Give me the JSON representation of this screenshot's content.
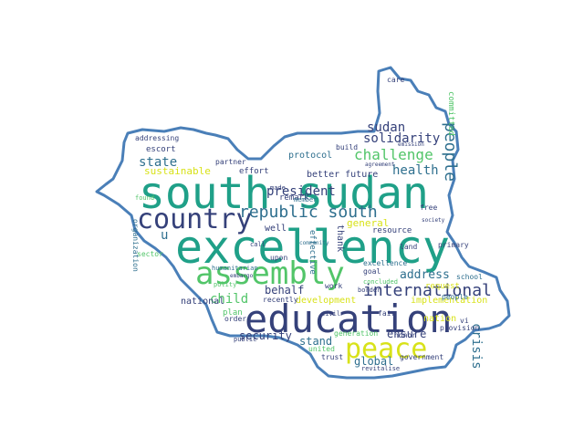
{
  "wordcloud": {
    "words": [
      {
        "text": "south sudan",
        "color": "#1fa088"
      },
      {
        "text": "excellency",
        "color": "#1fa088"
      },
      {
        "text": "education",
        "color": "#35417a"
      },
      {
        "text": "assembly",
        "color": "#52c569"
      },
      {
        "text": "country",
        "color": "#35417a"
      },
      {
        "text": "peace",
        "color": "#d8e219"
      },
      {
        "text": "republic south",
        "color": "#2e6f8e"
      },
      {
        "text": "international",
        "color": "#35417a"
      },
      {
        "text": "people",
        "color": "#2e6f8e"
      },
      {
        "text": "challenge",
        "color": "#52c569"
      },
      {
        "text": "solidarity",
        "color": "#35417a"
      },
      {
        "text": "sudan",
        "color": "#35417a"
      },
      {
        "text": "health",
        "color": "#2e6f8e"
      },
      {
        "text": "president",
        "color": "#35417a"
      },
      {
        "text": "state",
        "color": "#2e6f8e"
      },
      {
        "text": "sustainable",
        "color": "#d8e219"
      },
      {
        "text": "address",
        "color": "#2e6f8e"
      },
      {
        "text": "child",
        "color": "#52c569"
      },
      {
        "text": "behalf",
        "color": "#35417a"
      },
      {
        "text": "ensure",
        "color": "#35417a"
      },
      {
        "text": "security",
        "color": "#35417a"
      },
      {
        "text": "stand",
        "color": "#2e6f8e"
      },
      {
        "text": "global",
        "color": "#2e6f8e"
      },
      {
        "text": "general",
        "color": "#d8e219"
      },
      {
        "text": "u",
        "color": "#2e6f8e"
      },
      {
        "text": "development",
        "color": "#d8e219"
      },
      {
        "text": "implementation",
        "color": "#d8e219"
      },
      {
        "text": "crisis",
        "color": "#2e6f8e"
      },
      {
        "text": "nation",
        "color": "#d8e219"
      },
      {
        "text": "better future",
        "color": "#35417a"
      },
      {
        "text": "resource",
        "color": "#35417a"
      },
      {
        "text": "excellence",
        "color": "#2e6f8e"
      },
      {
        "text": "effort",
        "color": "#35417a"
      },
      {
        "text": "partner",
        "color": "#35417a"
      },
      {
        "text": "escort",
        "color": "#35417a"
      },
      {
        "text": "protocol",
        "color": "#2e6f8e"
      },
      {
        "text": "national",
        "color": "#35417a"
      },
      {
        "text": "plan",
        "color": "#52c569"
      },
      {
        "text": "order",
        "color": "#35417a"
      },
      {
        "text": "recently",
        "color": "#35417a"
      },
      {
        "text": "well",
        "color": "#35417a"
      },
      {
        "text": "upon",
        "color": "#35417a"
      },
      {
        "text": "remark",
        "color": "#35417a"
      },
      {
        "text": "thank",
        "color": "#35417a"
      },
      {
        "text": "effective",
        "color": "#2e6f8e"
      },
      {
        "text": "work",
        "color": "#35417a"
      },
      {
        "text": "build",
        "color": "#35417a"
      },
      {
        "text": "land",
        "color": "#35417a"
      },
      {
        "text": "goal",
        "color": "#35417a"
      },
      {
        "text": "fair",
        "color": "#35417a"
      },
      {
        "text": "primary",
        "color": "#35417a"
      },
      {
        "text": "school",
        "color": "#2e6f8e"
      },
      {
        "text": "request",
        "color": "#d8e219"
      },
      {
        "text": "people",
        "color": "#2e6f8e"
      },
      {
        "text": "committed",
        "color": "#52c569"
      },
      {
        "text": "care",
        "color": "#35417a"
      },
      {
        "text": "free",
        "color": "#35417a"
      },
      {
        "text": "provision",
        "color": "#35417a"
      },
      {
        "text": "honor",
        "color": "#35417a"
      },
      {
        "text": "government",
        "color": "#35417a"
      },
      {
        "text": "trust",
        "color": "#35417a"
      },
      {
        "text": "revitalise",
        "color": "#35417a"
      },
      {
        "text": "generation",
        "color": "#52c569"
      },
      {
        "text": "concluded",
        "color": "#52c569"
      },
      {
        "text": "united",
        "color": "#52c569"
      },
      {
        "text": "civil",
        "color": "#35417a"
      },
      {
        "text": "public",
        "color": "#35417a"
      },
      {
        "text": "sector",
        "color": "#52c569"
      },
      {
        "text": "addressing",
        "color": "#35417a"
      },
      {
        "text": "organization",
        "color": "#2e6f8e"
      },
      {
        "text": "found",
        "color": "#52c569"
      },
      {
        "text": "humanitarian",
        "color": "#2e6f8e"
      },
      {
        "text": "embargo",
        "color": "#35417a"
      },
      {
        "text": "polity",
        "color": "#52c569"
      },
      {
        "text": "call",
        "color": "#35417a"
      },
      {
        "text": "agreement",
        "color": "#35417a"
      },
      {
        "text": "emission",
        "color": "#35417a"
      },
      {
        "text": "made",
        "color": "#35417a"
      },
      {
        "text": "member",
        "color": "#2e6f8e"
      },
      {
        "text": "society",
        "color": "#35417a"
      },
      {
        "text": "community",
        "color": "#2e6f8e"
      },
      {
        "text": "border",
        "color": "#35417a"
      },
      {
        "text": "vi",
        "color": "#35417a"
      }
    ]
  }
}
